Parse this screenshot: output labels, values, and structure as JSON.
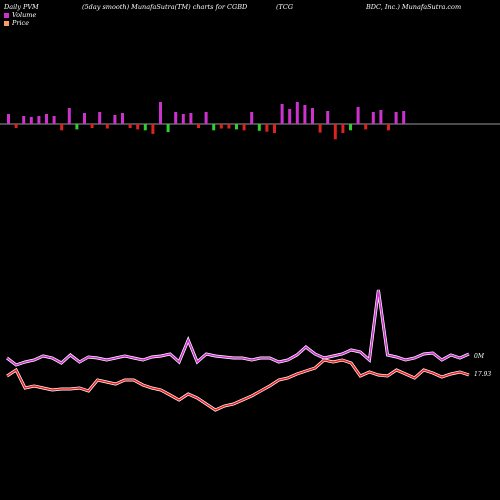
{
  "header": {
    "left": "Daily PVM",
    "mid": "(5day smooth) MunafaSutra(TM) charts for CGBD",
    "right1": "(TCG",
    "right2": "BDC, Inc.) MunafaSutra.com"
  },
  "legend": [
    {
      "label": "Volume",
      "color": "#cc33cc"
    },
    {
      "label": "Price",
      "color": "#ff9966"
    }
  ],
  "chart_data": {
    "type": "line",
    "bars": {
      "values": [
        10,
        6,
        8,
        7,
        8,
        10,
        8,
        14,
        16,
        12,
        11,
        9,
        12,
        10,
        9,
        11,
        9,
        12,
        14,
        22,
        22,
        18,
        12,
        10,
        11,
        9,
        12,
        14,
        10,
        10,
        12,
        14,
        12,
        15,
        17,
        20,
        20,
        15,
        22,
        19,
        16,
        19,
        13,
        34,
        20,
        14,
        17,
        12,
        12,
        14,
        14,
        12,
        13
      ],
      "signs": [
        1,
        -1,
        1,
        1,
        1,
        1,
        1,
        -1,
        1,
        -1,
        1,
        -1,
        1,
        -1,
        1,
        1,
        -1,
        -1,
        -1,
        -1,
        1,
        -1,
        1,
        1,
        1,
        -1,
        1,
        -1,
        -1,
        -1,
        -1,
        -1,
        1,
        -1,
        -1,
        -1,
        1,
        1,
        1,
        1,
        1,
        -1,
        1,
        -1,
        -1,
        -1,
        1,
        -1,
        1,
        1,
        -1,
        1,
        1
      ],
      "colors": {
        "up": "#cc33cc",
        "down_price": "#dd2222",
        "down_vol": "#33cc33"
      }
    },
    "volume_line": [
      358,
      365,
      362,
      360,
      356,
      358,
      363,
      355,
      362,
      357,
      358,
      360,
      358,
      356,
      358,
      360,
      357,
      356,
      354,
      362,
      340,
      362,
      354,
      356,
      357,
      358,
      358,
      360,
      358,
      358,
      362,
      360,
      355,
      347,
      354,
      358,
      356,
      354,
      350,
      352,
      360,
      290,
      355,
      357,
      360,
      358,
      354,
      353,
      360,
      355,
      358,
      354
    ],
    "price_line": [
      376,
      370,
      388,
      386,
      388,
      390,
      389,
      389,
      388,
      391,
      380,
      382,
      384,
      380,
      380,
      385,
      388,
      390,
      395,
      400,
      394,
      398,
      404,
      410,
      406,
      404,
      400,
      396,
      391,
      386,
      380,
      378,
      374,
      371,
      368,
      360,
      362,
      360,
      363,
      376,
      372,
      375,
      376,
      370,
      374,
      378,
      370,
      373,
      377,
      374,
      372,
      375
    ],
    "labels": {
      "volume_now": "0M",
      "price_now": "17.93"
    }
  }
}
